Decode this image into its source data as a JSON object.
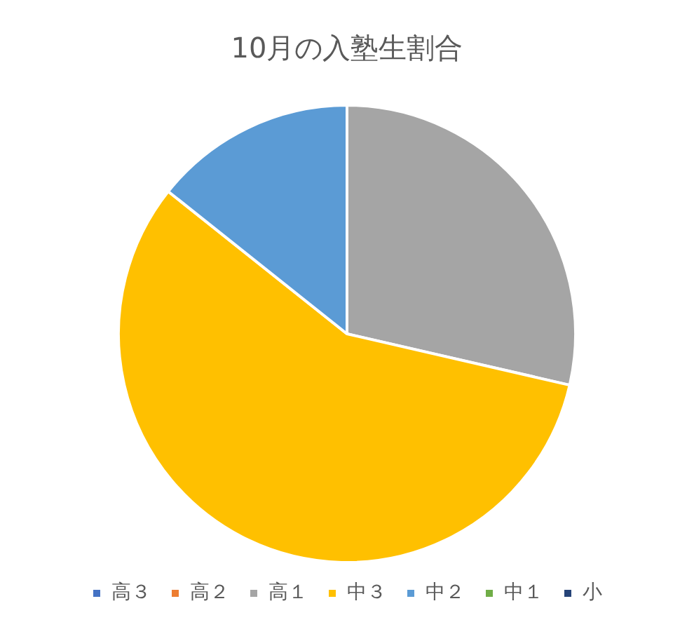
{
  "chart_data": {
    "type": "pie",
    "title": "10月の入塾生割合",
    "categories": [
      "高３",
      "高２",
      "高１",
      "中３",
      "中２",
      "中１",
      "小"
    ],
    "values": [
      0,
      0,
      28.6,
      57.1,
      14.3,
      0,
      0
    ],
    "colors": [
      "#4472c4",
      "#ed7d31",
      "#a5a5a5",
      "#ffc000",
      "#5b9bd5",
      "#70ad47",
      "#264478"
    ],
    "legend": "bottom"
  }
}
